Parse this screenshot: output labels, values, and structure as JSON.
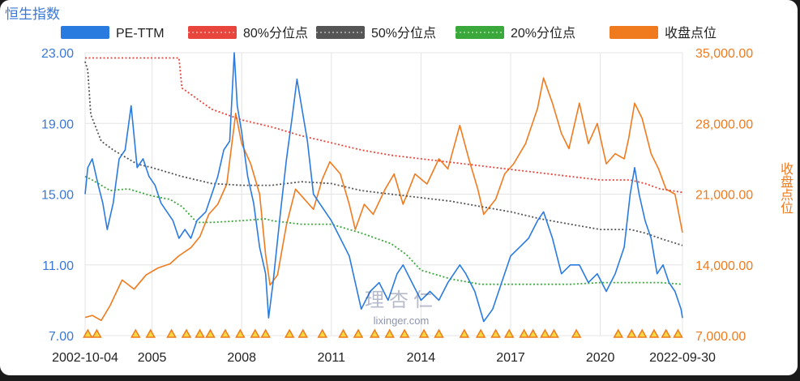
{
  "chart_data": {
    "type": "line",
    "title": "恒生指数",
    "y2label": "收盘点位",
    "legend_position": "top",
    "watermark": {
      "logo_text": "理杏仁",
      "url": "lixinger.com"
    },
    "x_ticks": [
      "2002-10-04",
      "2005",
      "2008",
      "2011",
      "2014",
      "2017",
      "2020",
      "2022-09-30"
    ],
    "x_range": [
      "2002-10-04",
      "2022-09-30"
    ],
    "y_left": {
      "ticks": [
        "7.00",
        "11.00",
        "15.00",
        "19.00",
        "23.00"
      ],
      "range": [
        7,
        23
      ]
    },
    "y_right": {
      "ticks": [
        "7,000.00",
        "14,000.00",
        "21,000.00",
        "28,000.00",
        "35,000.00"
      ],
      "range": [
        7000,
        35000
      ]
    },
    "series": [
      {
        "name": "PE-TTM",
        "axis": "left",
        "color": "#2a7be0",
        "style": "solid",
        "points": [
          [
            2002.76,
            15.0
          ],
          [
            2002.85,
            16.5
          ],
          [
            2003.0,
            17.0
          ],
          [
            2003.2,
            15.5
          ],
          [
            2003.35,
            14.5
          ],
          [
            2003.5,
            13.0
          ],
          [
            2003.7,
            14.5
          ],
          [
            2003.9,
            17.0
          ],
          [
            2004.1,
            17.5
          ],
          [
            2004.3,
            20.0
          ],
          [
            2004.5,
            16.5
          ],
          [
            2004.7,
            17.0
          ],
          [
            2004.9,
            16.0
          ],
          [
            2005.1,
            15.5
          ],
          [
            2005.3,
            14.5
          ],
          [
            2005.5,
            14.0
          ],
          [
            2005.7,
            13.5
          ],
          [
            2005.9,
            12.5
          ],
          [
            2006.1,
            13.0
          ],
          [
            2006.3,
            12.5
          ],
          [
            2006.5,
            13.5
          ],
          [
            2006.8,
            14.0
          ],
          [
            2007.0,
            15.0
          ],
          [
            2007.2,
            16.0
          ],
          [
            2007.4,
            17.5
          ],
          [
            2007.6,
            18.0
          ],
          [
            2007.75,
            23.0
          ],
          [
            2007.85,
            20.0
          ],
          [
            2008.0,
            18.5
          ],
          [
            2008.2,
            16.0
          ],
          [
            2008.4,
            14.5
          ],
          [
            2008.6,
            12.0
          ],
          [
            2008.8,
            10.5
          ],
          [
            2008.9,
            8.0
          ],
          [
            2009.05,
            10.0
          ],
          [
            2009.3,
            14.0
          ],
          [
            2009.5,
            17.0
          ],
          [
            2009.7,
            19.5
          ],
          [
            2009.85,
            21.5
          ],
          [
            2010.0,
            20.0
          ],
          [
            2010.2,
            18.0
          ],
          [
            2010.4,
            15.0
          ],
          [
            2010.6,
            14.5
          ],
          [
            2010.8,
            14.0
          ],
          [
            2011.0,
            13.5
          ],
          [
            2011.3,
            12.5
          ],
          [
            2011.6,
            11.5
          ],
          [
            2011.8,
            10.0
          ],
          [
            2012.0,
            8.5
          ],
          [
            2012.3,
            9.5
          ],
          [
            2012.6,
            10.0
          ],
          [
            2012.9,
            9.0
          ],
          [
            2013.2,
            10.5
          ],
          [
            2013.4,
            11.0
          ],
          [
            2013.7,
            10.0
          ],
          [
            2014.0,
            9.0
          ],
          [
            2014.3,
            9.5
          ],
          [
            2014.6,
            9.0
          ],
          [
            2014.9,
            10.0
          ],
          [
            2015.3,
            11.0
          ],
          [
            2015.5,
            10.5
          ],
          [
            2015.8,
            9.5
          ],
          [
            2016.1,
            7.8
          ],
          [
            2016.4,
            8.5
          ],
          [
            2016.7,
            10.0
          ],
          [
            2017.0,
            11.5
          ],
          [
            2017.3,
            12.0
          ],
          [
            2017.6,
            12.5
          ],
          [
            2017.9,
            13.5
          ],
          [
            2018.1,
            14.0
          ],
          [
            2018.4,
            12.5
          ],
          [
            2018.7,
            10.5
          ],
          [
            2019.0,
            11.0
          ],
          [
            2019.3,
            11.0
          ],
          [
            2019.6,
            10.0
          ],
          [
            2019.9,
            10.5
          ],
          [
            2020.2,
            9.5
          ],
          [
            2020.5,
            10.5
          ],
          [
            2020.8,
            12.0
          ],
          [
            2021.0,
            15.0
          ],
          [
            2021.15,
            16.5
          ],
          [
            2021.3,
            15.0
          ],
          [
            2021.5,
            13.5
          ],
          [
            2021.7,
            12.5
          ],
          [
            2021.9,
            10.5
          ],
          [
            2022.1,
            11.0
          ],
          [
            2022.3,
            10.0
          ],
          [
            2022.5,
            9.5
          ],
          [
            2022.7,
            8.5
          ],
          [
            2022.75,
            8.0
          ]
        ]
      },
      {
        "name": "80%分位点",
        "axis": "left",
        "color": "#e8463c",
        "style": "dotted",
        "points": [
          [
            2002.76,
            22.7
          ],
          [
            2004.0,
            22.7
          ],
          [
            2005.9,
            22.7
          ],
          [
            2006.0,
            21.0
          ],
          [
            2007.0,
            19.8
          ],
          [
            2008.0,
            19.2
          ],
          [
            2009.0,
            18.8
          ],
          [
            2010.0,
            18.3
          ],
          [
            2011.0,
            17.9
          ],
          [
            2012.0,
            17.5
          ],
          [
            2013.0,
            17.2
          ],
          [
            2014.0,
            17.0
          ],
          [
            2015.0,
            16.8
          ],
          [
            2016.0,
            16.6
          ],
          [
            2017.0,
            16.4
          ],
          [
            2018.0,
            16.2
          ],
          [
            2019.0,
            16.0
          ],
          [
            2020.0,
            15.8
          ],
          [
            2021.0,
            15.8
          ],
          [
            2021.5,
            15.6
          ],
          [
            2022.0,
            15.3
          ],
          [
            2022.75,
            15.1
          ]
        ]
      },
      {
        "name": "50%分位点",
        "axis": "left",
        "color": "#555555",
        "style": "dotted",
        "points": [
          [
            2002.76,
            22.5
          ],
          [
            2002.85,
            22.0
          ],
          [
            2002.95,
            19.5
          ],
          [
            2003.3,
            18.0
          ],
          [
            2003.7,
            17.5
          ],
          [
            2004.0,
            17.2
          ],
          [
            2004.5,
            16.7
          ],
          [
            2005.0,
            16.5
          ],
          [
            2006.0,
            16.0
          ],
          [
            2007.0,
            15.6
          ],
          [
            2008.0,
            15.5
          ],
          [
            2009.0,
            15.5
          ],
          [
            2010.0,
            15.7
          ],
          [
            2011.0,
            15.6
          ],
          [
            2012.0,
            15.2
          ],
          [
            2013.0,
            15.0
          ],
          [
            2014.0,
            14.8
          ],
          [
            2015.0,
            14.6
          ],
          [
            2016.0,
            14.3
          ],
          [
            2017.0,
            14.0
          ],
          [
            2018.0,
            13.6
          ],
          [
            2019.0,
            13.3
          ],
          [
            2020.0,
            13.0
          ],
          [
            2021.0,
            13.0
          ],
          [
            2021.5,
            12.8
          ],
          [
            2022.0,
            12.5
          ],
          [
            2022.75,
            12.1
          ]
        ]
      },
      {
        "name": "20%分位点",
        "axis": "left",
        "color": "#3aa83a",
        "style": "dotted",
        "points": [
          [
            2002.76,
            16.0
          ],
          [
            2003.0,
            15.8
          ],
          [
            2003.6,
            15.2
          ],
          [
            2004.2,
            15.3
          ],
          [
            2005.0,
            14.9
          ],
          [
            2005.6,
            14.7
          ],
          [
            2006.0,
            14.3
          ],
          [
            2006.5,
            13.4
          ],
          [
            2007.0,
            13.4
          ],
          [
            2008.0,
            13.5
          ],
          [
            2008.8,
            13.6
          ],
          [
            2009.0,
            13.5
          ],
          [
            2010.0,
            13.3
          ],
          [
            2011.0,
            13.3
          ],
          [
            2012.0,
            12.8
          ],
          [
            2013.0,
            12.2
          ],
          [
            2013.5,
            11.6
          ],
          [
            2014.0,
            10.7
          ],
          [
            2015.0,
            10.2
          ],
          [
            2016.0,
            9.9
          ],
          [
            2017.0,
            9.9
          ],
          [
            2018.0,
            9.9
          ],
          [
            2019.0,
            9.9
          ],
          [
            2020.0,
            10.0
          ],
          [
            2021.0,
            10.0
          ],
          [
            2022.0,
            10.0
          ],
          [
            2022.75,
            9.9
          ]
        ]
      },
      {
        "name": "收盘点位",
        "axis": "right",
        "color": "#f07b1e",
        "style": "solid",
        "points": [
          [
            2002.76,
            8800
          ],
          [
            2003.0,
            9000
          ],
          [
            2003.3,
            8500
          ],
          [
            2003.6,
            10000
          ],
          [
            2004.0,
            12500
          ],
          [
            2004.4,
            11600
          ],
          [
            2004.8,
            13000
          ],
          [
            2005.2,
            13700
          ],
          [
            2005.6,
            14100
          ],
          [
            2005.9,
            14900
          ],
          [
            2006.3,
            15700
          ],
          [
            2006.6,
            16800
          ],
          [
            2006.9,
            19000
          ],
          [
            2007.2,
            20000
          ],
          [
            2007.5,
            22000
          ],
          [
            2007.8,
            29000
          ],
          [
            2008.0,
            26000
          ],
          [
            2008.3,
            24000
          ],
          [
            2008.6,
            21000
          ],
          [
            2008.8,
            15000
          ],
          [
            2008.95,
            12000
          ],
          [
            2009.2,
            13000
          ],
          [
            2009.5,
            18000
          ],
          [
            2009.8,
            21500
          ],
          [
            2010.1,
            20500
          ],
          [
            2010.4,
            19500
          ],
          [
            2010.7,
            22500
          ],
          [
            2010.95,
            24200
          ],
          [
            2011.3,
            23000
          ],
          [
            2011.6,
            20000
          ],
          [
            2011.8,
            17500
          ],
          [
            2012.1,
            20000
          ],
          [
            2012.4,
            19000
          ],
          [
            2012.8,
            21500
          ],
          [
            2013.1,
            23000
          ],
          [
            2013.4,
            20000
          ],
          [
            2013.8,
            23000
          ],
          [
            2014.2,
            22000
          ],
          [
            2014.6,
            24500
          ],
          [
            2014.9,
            23500
          ],
          [
            2015.3,
            27800
          ],
          [
            2015.6,
            24500
          ],
          [
            2015.9,
            21500
          ],
          [
            2016.1,
            19000
          ],
          [
            2016.5,
            20500
          ],
          [
            2016.8,
            23000
          ],
          [
            2017.1,
            24000
          ],
          [
            2017.5,
            26000
          ],
          [
            2017.9,
            29500
          ],
          [
            2018.1,
            32500
          ],
          [
            2018.4,
            30000
          ],
          [
            2018.7,
            27000
          ],
          [
            2018.95,
            25500
          ],
          [
            2019.3,
            30000
          ],
          [
            2019.6,
            26000
          ],
          [
            2019.9,
            28000
          ],
          [
            2020.2,
            24000
          ],
          [
            2020.5,
            25000
          ],
          [
            2020.8,
            24500
          ],
          [
            2020.95,
            26500
          ],
          [
            2021.15,
            30000
          ],
          [
            2021.4,
            28500
          ],
          [
            2021.7,
            25000
          ],
          [
            2021.95,
            23500
          ],
          [
            2022.2,
            21500
          ],
          [
            2022.5,
            21000
          ],
          [
            2022.75,
            17200
          ]
        ]
      }
    ],
    "events": [
      2002.85,
      2003.15,
      2004.45,
      2004.95,
      2005.65,
      2006.15,
      2006.6,
      2006.95,
      2007.45,
      2007.95,
      2008.45,
      2008.8,
      2009.6,
      2010.05,
      2010.7,
      2011.4,
      2011.9,
      2012.45,
      2012.95,
      2013.45,
      2014.1,
      2014.6,
      2015.45,
      2016.0,
      2016.5,
      2016.95,
      2017.45,
      2017.75,
      2018.15,
      2018.45,
      2019.2,
      2020.6,
      2021.05,
      2021.4,
      2021.8,
      2022.2,
      2022.6
    ]
  }
}
